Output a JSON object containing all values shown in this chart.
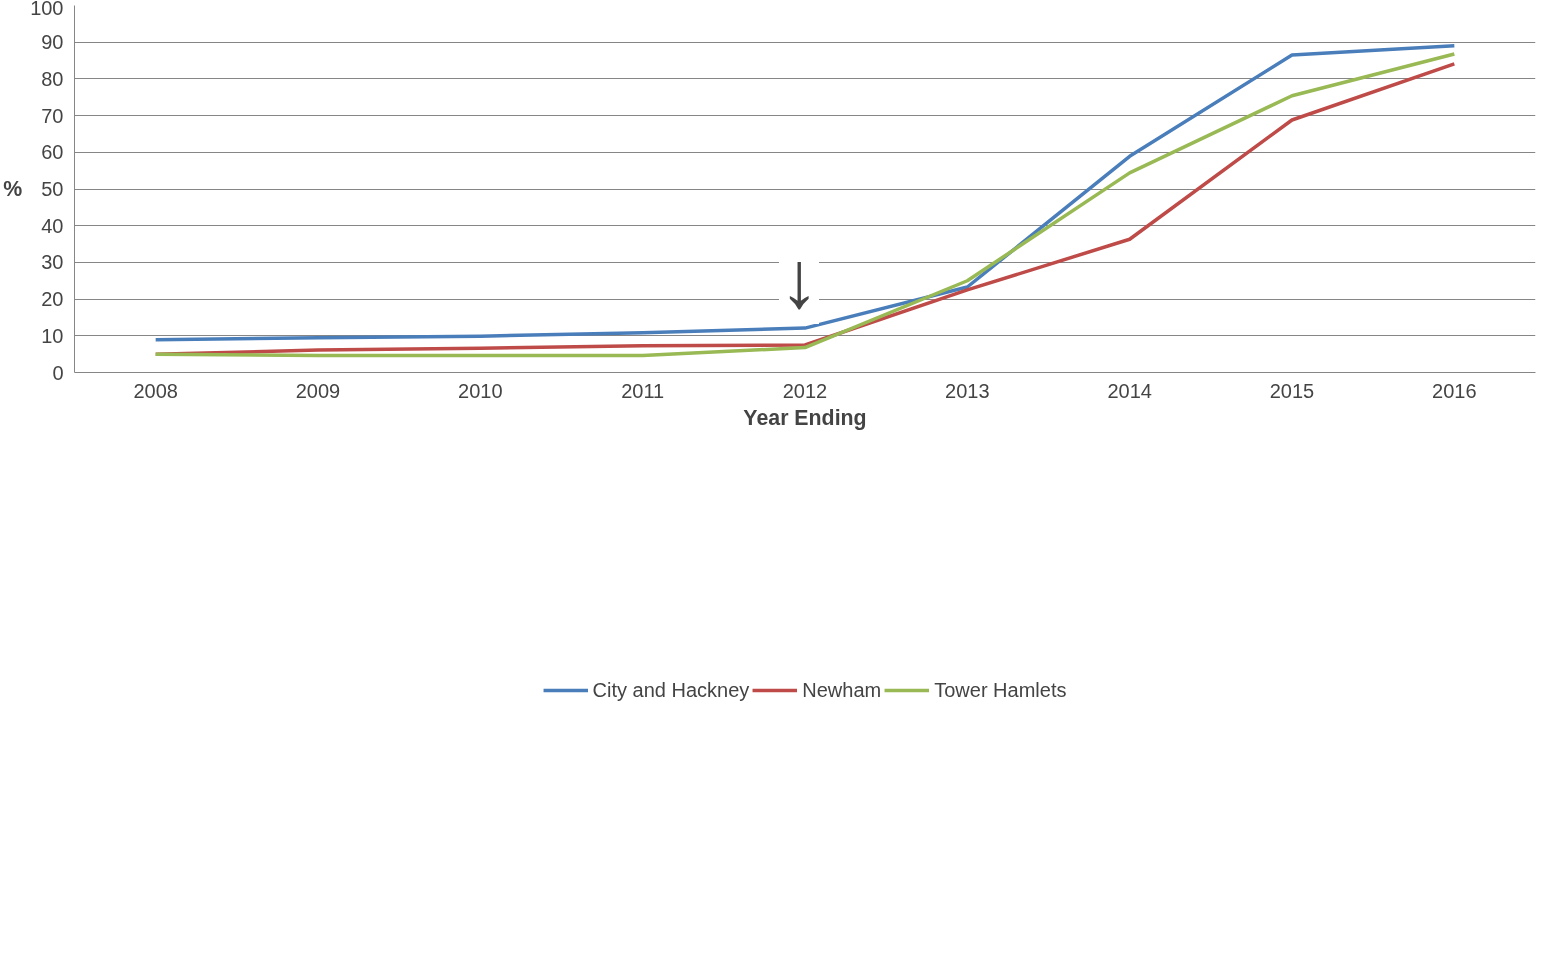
{
  "chart_data": {
    "type": "line",
    "ylabel": "%",
    "xlabel": "Year Ending",
    "x": [
      2008,
      2009,
      2010,
      2011,
      2012,
      2013,
      2014,
      2015,
      2016
    ],
    "series": [
      {
        "name": "City and Hackney",
        "color": "#4a7ebb",
        "values": [
          8.9,
          9.5,
          9.9,
          10.8,
          12.1,
          23.3,
          58.9,
          86.5,
          89.0
        ]
      },
      {
        "name": "Newham",
        "color": "#be4b48",
        "values": [
          5.0,
          6.1,
          6.6,
          7.3,
          7.5,
          22.5,
          36.3,
          68.8,
          84.1
        ]
      },
      {
        "name": "Tower Hamlets",
        "color": "#98b954",
        "values": [
          5.0,
          4.6,
          4.6,
          4.6,
          6.8,
          25.0,
          54.4,
          75.4,
          86.8
        ]
      }
    ],
    "xlim": [
      2007.5,
      2016.5
    ],
    "xticks": [
      2008,
      2009,
      2010,
      2011,
      2012,
      2013,
      2014,
      2015,
      2016
    ],
    "ylim": [
      0,
      100
    ],
    "yticks": [
      0,
      10,
      20,
      30,
      40,
      50,
      60,
      70,
      80,
      90,
      100
    ],
    "annotations": [
      "↓"
    ],
    "grid": "y",
    "legend": "bottom",
    "marker": "none",
    "line_style": "solid"
  }
}
